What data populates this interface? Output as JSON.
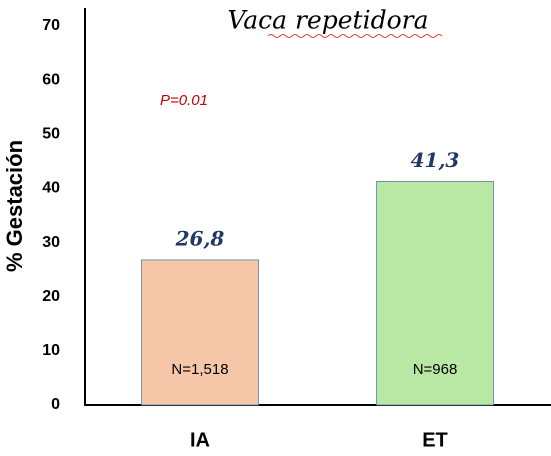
{
  "chart_data": {
    "type": "bar",
    "title": "Vaca repetidora",
    "y_label": "% Gestación",
    "categories": [
      "IA",
      "ET"
    ],
    "values": [
      26.8,
      41.3
    ],
    "value_labels": [
      "26,8",
      "41,3"
    ],
    "colors": [
      "#f6c6a9",
      "#b9e7a4"
    ],
    "bar_notes": [
      "N=1,518",
      "N=968"
    ],
    "annotation": "P=0.01",
    "ylim": [
      0,
      70
    ],
    "yticks": [
      0,
      10,
      20,
      30,
      40,
      50,
      60,
      70
    ],
    "grid": false
  }
}
